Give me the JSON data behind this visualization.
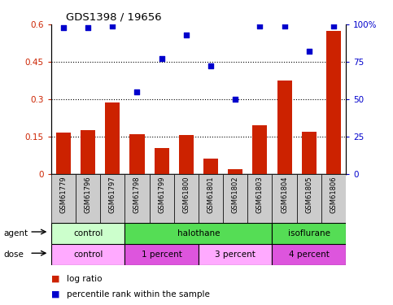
{
  "title": "GDS1398 / 19656",
  "samples": [
    "GSM61779",
    "GSM61796",
    "GSM61797",
    "GSM61798",
    "GSM61799",
    "GSM61800",
    "GSM61801",
    "GSM61802",
    "GSM61803",
    "GSM61804",
    "GSM61805",
    "GSM61806"
  ],
  "log_ratio": [
    0.165,
    0.175,
    0.285,
    0.16,
    0.105,
    0.155,
    0.06,
    0.02,
    0.195,
    0.375,
    0.17,
    0.575
  ],
  "percentile_rank": [
    98,
    98,
    99,
    55,
    77,
    93,
    72,
    50,
    99,
    99,
    82,
    99
  ],
  "bar_color": "#cc2200",
  "dot_color": "#0000cc",
  "ylim_left": [
    0,
    0.6
  ],
  "ylim_right": [
    0,
    100
  ],
  "yticks_left": [
    0,
    0.15,
    0.3,
    0.45,
    0.6
  ],
  "yticks_right": [
    0,
    25,
    50,
    75,
    100
  ],
  "ytick_labels_left": [
    "0",
    "0.15",
    "0.3",
    "0.45",
    "0.6"
  ],
  "ytick_labels_right": [
    "0",
    "25",
    "50",
    "75",
    "100%"
  ],
  "hlines": [
    0.15,
    0.3,
    0.45
  ],
  "agent_groups": [
    {
      "label": "control",
      "start": 0,
      "end": 3,
      "color": "#ccffcc"
    },
    {
      "label": "halothane",
      "start": 3,
      "end": 9,
      "color": "#55dd55"
    },
    {
      "label": "isoflurane",
      "start": 9,
      "end": 12,
      "color": "#55dd55"
    }
  ],
  "dose_groups": [
    {
      "label": "control",
      "start": 0,
      "end": 3,
      "color": "#ffaaff"
    },
    {
      "label": "1 percent",
      "start": 3,
      "end": 6,
      "color": "#dd55dd"
    },
    {
      "label": "3 percent",
      "start": 6,
      "end": 9,
      "color": "#ffaaff"
    },
    {
      "label": "4 percent",
      "start": 9,
      "end": 12,
      "color": "#dd55dd"
    }
  ],
  "legend_log_label": "log ratio",
  "legend_pct_label": "percentile rank within the sample",
  "agent_label": "agent",
  "dose_label": "dose",
  "background_color": "#ffffff",
  "sample_cell_color": "#cccccc"
}
